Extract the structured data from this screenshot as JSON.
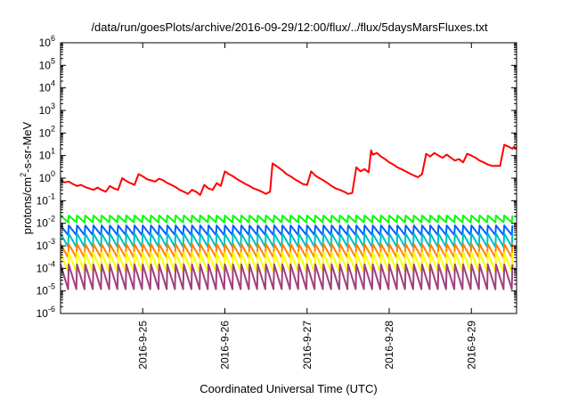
{
  "chart_data": {
    "type": "line",
    "title": "/data/run/goesPlots/archive/2016-09-29/12:00/flux/../flux/5daysMarsFluxes.txt",
    "xlabel": "Coordinated Universal Time (UTC)",
    "ylabel_main": "protons/cm",
    "ylabel_sup": "2",
    "ylabel_tail": "-s-sr-MeV",
    "y_scale": "log",
    "ylim_exp": [
      -6,
      6
    ],
    "xlim_days": [
      24.0,
      29.55
    ],
    "x_ticks": [
      {
        "day": 25,
        "label": "2016-9-25"
      },
      {
        "day": 26,
        "label": "2016-9-26"
      },
      {
        "day": 27,
        "label": "2016-9-27"
      },
      {
        "day": 28,
        "label": "2016-9-28"
      },
      {
        "day": 29,
        "label": "2016-9-29"
      }
    ],
    "y_ticks": [
      {
        "exp": -6,
        "base": "10",
        "sup": "-6"
      },
      {
        "exp": -5,
        "base": "10",
        "sup": "-5"
      },
      {
        "exp": -4,
        "base": "10",
        "sup": "-4"
      },
      {
        "exp": -3,
        "base": "10",
        "sup": "-3"
      },
      {
        "exp": -2,
        "base": "10",
        "sup": "-2"
      },
      {
        "exp": -1,
        "base": "10",
        "sup": "-1"
      },
      {
        "exp": 0,
        "base": "10",
        "sup": "0"
      },
      {
        "exp": 1,
        "base": "10",
        "sup": "1"
      },
      {
        "exp": 2,
        "base": "10",
        "sup": "2"
      },
      {
        "exp": 3,
        "base": "10",
        "sup": "3"
      },
      {
        "exp": 4,
        "base": "10",
        "sup": "4"
      },
      {
        "exp": 5,
        "base": "10",
        "sup": "5"
      },
      {
        "exp": 6,
        "base": "10",
        "sup": "6"
      }
    ],
    "grid": false,
    "legend": "none",
    "series": [
      {
        "color": "#ff0000",
        "points": [
          [
            24.0,
            0.75
          ],
          [
            24.05,
            0.65
          ],
          [
            24.1,
            0.7
          ],
          [
            24.15,
            0.55
          ],
          [
            24.2,
            0.45
          ],
          [
            24.25,
            0.5
          ],
          [
            24.3,
            0.4
          ],
          [
            24.35,
            0.35
          ],
          [
            24.4,
            0.3
          ],
          [
            24.45,
            0.38
          ],
          [
            24.5,
            0.3
          ],
          [
            24.55,
            0.25
          ],
          [
            24.6,
            0.45
          ],
          [
            24.65,
            0.35
          ],
          [
            24.7,
            0.3
          ],
          [
            24.75,
            1.0
          ],
          [
            24.8,
            0.75
          ],
          [
            24.85,
            0.6
          ],
          [
            24.9,
            0.5
          ],
          [
            24.95,
            1.5
          ],
          [
            25.0,
            1.2
          ],
          [
            25.05,
            0.9
          ],
          [
            25.1,
            0.8
          ],
          [
            25.15,
            0.7
          ],
          [
            25.2,
            0.95
          ],
          [
            25.25,
            0.8
          ],
          [
            25.3,
            0.6
          ],
          [
            25.35,
            0.5
          ],
          [
            25.4,
            0.4
          ],
          [
            25.45,
            0.3
          ],
          [
            25.5,
            0.25
          ],
          [
            25.55,
            0.2
          ],
          [
            25.6,
            0.3
          ],
          [
            25.65,
            0.25
          ],
          [
            25.7,
            0.18
          ],
          [
            25.75,
            0.5
          ],
          [
            25.8,
            0.35
          ],
          [
            25.85,
            0.3
          ],
          [
            25.9,
            0.6
          ],
          [
            25.95,
            0.45
          ],
          [
            26.0,
            2.0
          ],
          [
            26.05,
            1.5
          ],
          [
            26.1,
            1.2
          ],
          [
            26.15,
            0.9
          ],
          [
            26.2,
            0.7
          ],
          [
            26.25,
            0.55
          ],
          [
            26.3,
            0.45
          ],
          [
            26.35,
            0.35
          ],
          [
            26.4,
            0.3
          ],
          [
            26.45,
            0.25
          ],
          [
            26.5,
            0.2
          ],
          [
            26.55,
            0.25
          ],
          [
            26.58,
            4.5
          ],
          [
            26.65,
            3.0
          ],
          [
            26.7,
            2.2
          ],
          [
            26.75,
            1.5
          ],
          [
            26.8,
            1.2
          ],
          [
            26.85,
            0.9
          ],
          [
            26.9,
            0.7
          ],
          [
            26.95,
            0.55
          ],
          [
            27.0,
            0.5
          ],
          [
            27.05,
            2.0
          ],
          [
            27.1,
            1.3
          ],
          [
            27.15,
            1.0
          ],
          [
            27.2,
            0.8
          ],
          [
            27.25,
            0.6
          ],
          [
            27.3,
            0.45
          ],
          [
            27.35,
            0.35
          ],
          [
            27.4,
            0.3
          ],
          [
            27.45,
            0.25
          ],
          [
            27.5,
            0.2
          ],
          [
            27.55,
            0.22
          ],
          [
            27.6,
            3.0
          ],
          [
            27.65,
            2.0
          ],
          [
            27.7,
            2.5
          ],
          [
            27.75,
            1.8
          ],
          [
            27.78,
            17
          ],
          [
            27.8,
            11
          ],
          [
            27.85,
            13
          ],
          [
            27.9,
            9
          ],
          [
            27.95,
            7
          ],
          [
            28.0,
            5
          ],
          [
            28.05,
            4
          ],
          [
            28.1,
            3
          ],
          [
            28.15,
            2.5
          ],
          [
            28.2,
            2.0
          ],
          [
            28.25,
            1.6
          ],
          [
            28.3,
            1.3
          ],
          [
            28.35,
            1.1
          ],
          [
            28.4,
            1.5
          ],
          [
            28.45,
            12
          ],
          [
            28.5,
            9
          ],
          [
            28.55,
            13
          ],
          [
            28.6,
            10
          ],
          [
            28.65,
            8
          ],
          [
            28.7,
            11
          ],
          [
            28.75,
            8
          ],
          [
            28.8,
            6
          ],
          [
            28.85,
            7
          ],
          [
            28.9,
            5
          ],
          [
            28.95,
            12
          ],
          [
            29.0,
            10
          ],
          [
            29.05,
            8
          ],
          [
            29.1,
            6
          ],
          [
            29.15,
            5
          ],
          [
            29.2,
            4
          ],
          [
            29.25,
            3.5
          ],
          [
            29.3,
            3.5
          ],
          [
            29.35,
            3.5
          ],
          [
            29.4,
            30
          ],
          [
            29.45,
            25
          ],
          [
            29.5,
            20
          ],
          [
            29.52,
            25
          ],
          [
            29.55,
            20
          ]
        ]
      },
      {
        "color": "#00ff00",
        "periodic": {
          "top": 0.022,
          "bottom": 0.011,
          "period_days": 0.1
        }
      },
      {
        "color": "#0060ff",
        "periodic": {
          "top": 0.008,
          "bottom": 0.003,
          "period_days": 0.1
        }
      },
      {
        "color": "#00c0c0",
        "periodic": {
          "top": 0.0035,
          "bottom": 0.0009,
          "period_days": 0.1
        }
      },
      {
        "color": "#ff8000",
        "periodic": {
          "top": 0.0012,
          "bottom": 0.0003,
          "period_days": 0.1
        }
      },
      {
        "color": "#ffff00",
        "periodic": {
          "top": 0.0005,
          "bottom": 7e-05,
          "period_days": 0.1
        }
      },
      {
        "color": "#a04080",
        "periodic": {
          "top": 0.00015,
          "bottom": 1.2e-05,
          "period_days": 0.1
        }
      }
    ]
  }
}
